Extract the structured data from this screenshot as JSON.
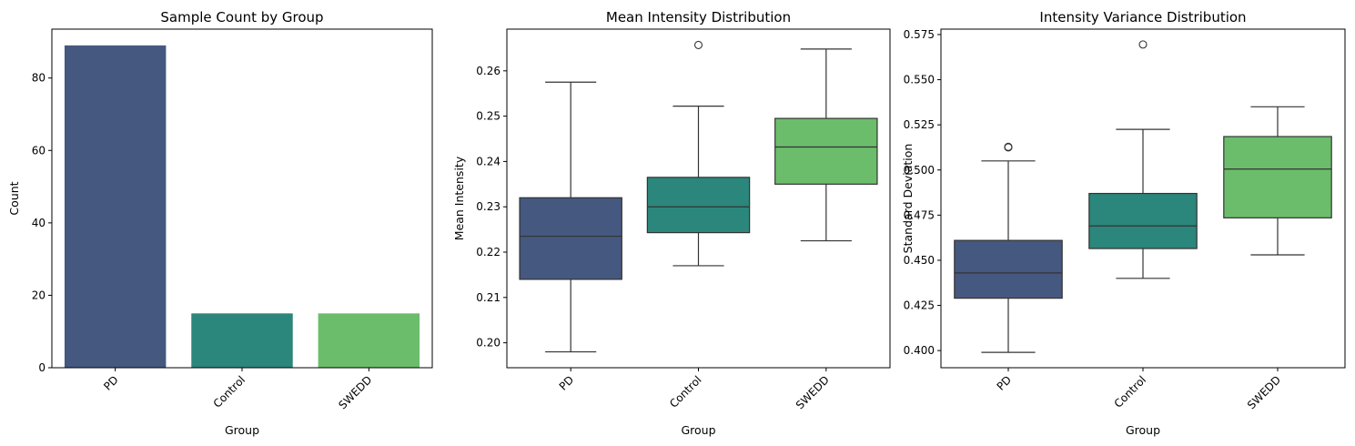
{
  "palette": {
    "PD": "#45587f",
    "Control": "#2b867b",
    "SWEDD": "#6bbd6b",
    "line": "#333333"
  },
  "chart_data": [
    {
      "type": "bar",
      "title": "Sample Count by Group",
      "xlabel": "Group",
      "ylabel": "Count",
      "categories": [
        "PD",
        "Control",
        "SWEDD"
      ],
      "values": [
        89,
        15,
        15
      ],
      "ylim": [
        0,
        93.5
      ],
      "yticks": [
        0,
        20,
        40,
        60,
        80
      ],
      "grid": false
    },
    {
      "type": "box",
      "title": "Mean Intensity Distribution",
      "xlabel": "Group",
      "ylabel": "Mean Intensity",
      "categories": [
        "PD",
        "Control",
        "SWEDD"
      ],
      "boxes": [
        {
          "name": "PD",
          "whislo": 0.198,
          "q1": 0.214,
          "med": 0.2235,
          "q3": 0.232,
          "whishi": 0.2575,
          "fliers": []
        },
        {
          "name": "Control",
          "whislo": 0.217,
          "q1": 0.2243,
          "med": 0.23,
          "q3": 0.2365,
          "whishi": 0.2522,
          "fliers": [
            0.2657
          ]
        },
        {
          "name": "SWEDD",
          "whislo": 0.2225,
          "q1": 0.235,
          "med": 0.2432,
          "q3": 0.2495,
          "whishi": 0.2648,
          "fliers": []
        }
      ],
      "ylim": [
        0.1945,
        0.2692
      ],
      "yticks": [
        "0.20",
        "0.21",
        "0.22",
        "0.23",
        "0.24",
        "0.25",
        "0.26"
      ],
      "grid": false
    },
    {
      "type": "box",
      "title": "Intensity Variance Distribution",
      "xlabel": "Group",
      "ylabel": "Standard Deviation",
      "categories": [
        "PD",
        "Control",
        "SWEDD"
      ],
      "boxes": [
        {
          "name": "PD",
          "whislo": 0.399,
          "q1": 0.429,
          "med": 0.443,
          "q3": 0.461,
          "whishi": 0.505,
          "fliers": [
            0.5125,
            0.5128
          ]
        },
        {
          "name": "Control",
          "whislo": 0.44,
          "q1": 0.4565,
          "med": 0.469,
          "q3": 0.487,
          "whishi": 0.5225,
          "fliers": [
            0.5695
          ]
        },
        {
          "name": "SWEDD",
          "whislo": 0.453,
          "q1": 0.4735,
          "med": 0.5005,
          "q3": 0.5185,
          "whishi": 0.535,
          "fliers": []
        }
      ],
      "ylim": [
        0.3905,
        0.578
      ],
      "yticks": [
        "0.400",
        "0.425",
        "0.450",
        "0.475",
        "0.500",
        "0.525",
        "0.550",
        "0.575"
      ],
      "grid": false
    }
  ]
}
